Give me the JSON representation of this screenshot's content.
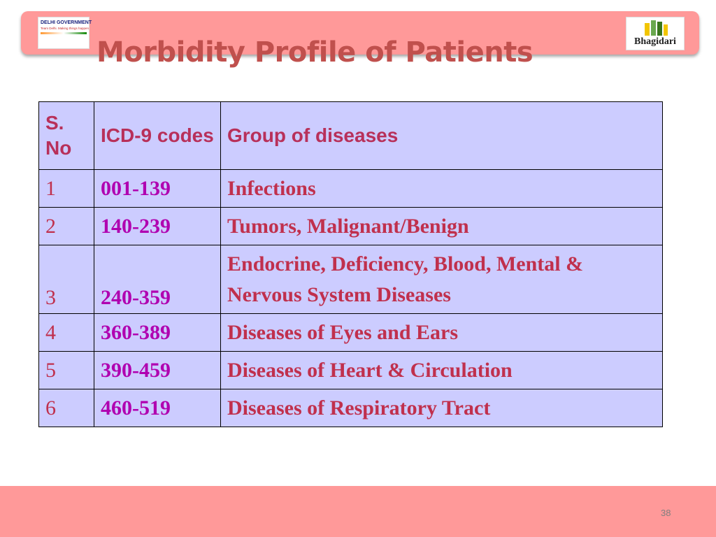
{
  "header": {
    "title": "Morbidity Profile of Patients",
    "left_logo": {
      "name": "DELHI GOVERNMENT",
      "tagline": "Team Delhi. Making things happen"
    },
    "right_logo": "Bhagidari"
  },
  "table": {
    "columns": [
      "S. No",
      "ICD-9 codes",
      "Group of diseases"
    ],
    "rows": [
      [
        "1",
        "001-139",
        "Infections"
      ],
      [
        "2",
        "140-239",
        "Tumors, Malignant/Benign"
      ],
      [
        "3",
        "240-359",
        "Endocrine, Deficiency, Blood, Mental & Nervous System Diseases"
      ],
      [
        "4",
        "360-389",
        "Diseases of Eyes and Ears"
      ],
      [
        "5",
        "390-459",
        "Diseases of Heart & Circulation"
      ],
      [
        "6",
        "460-519",
        "Diseases of Respiratory Tract"
      ]
    ]
  },
  "footer": {
    "page_number": "38"
  }
}
